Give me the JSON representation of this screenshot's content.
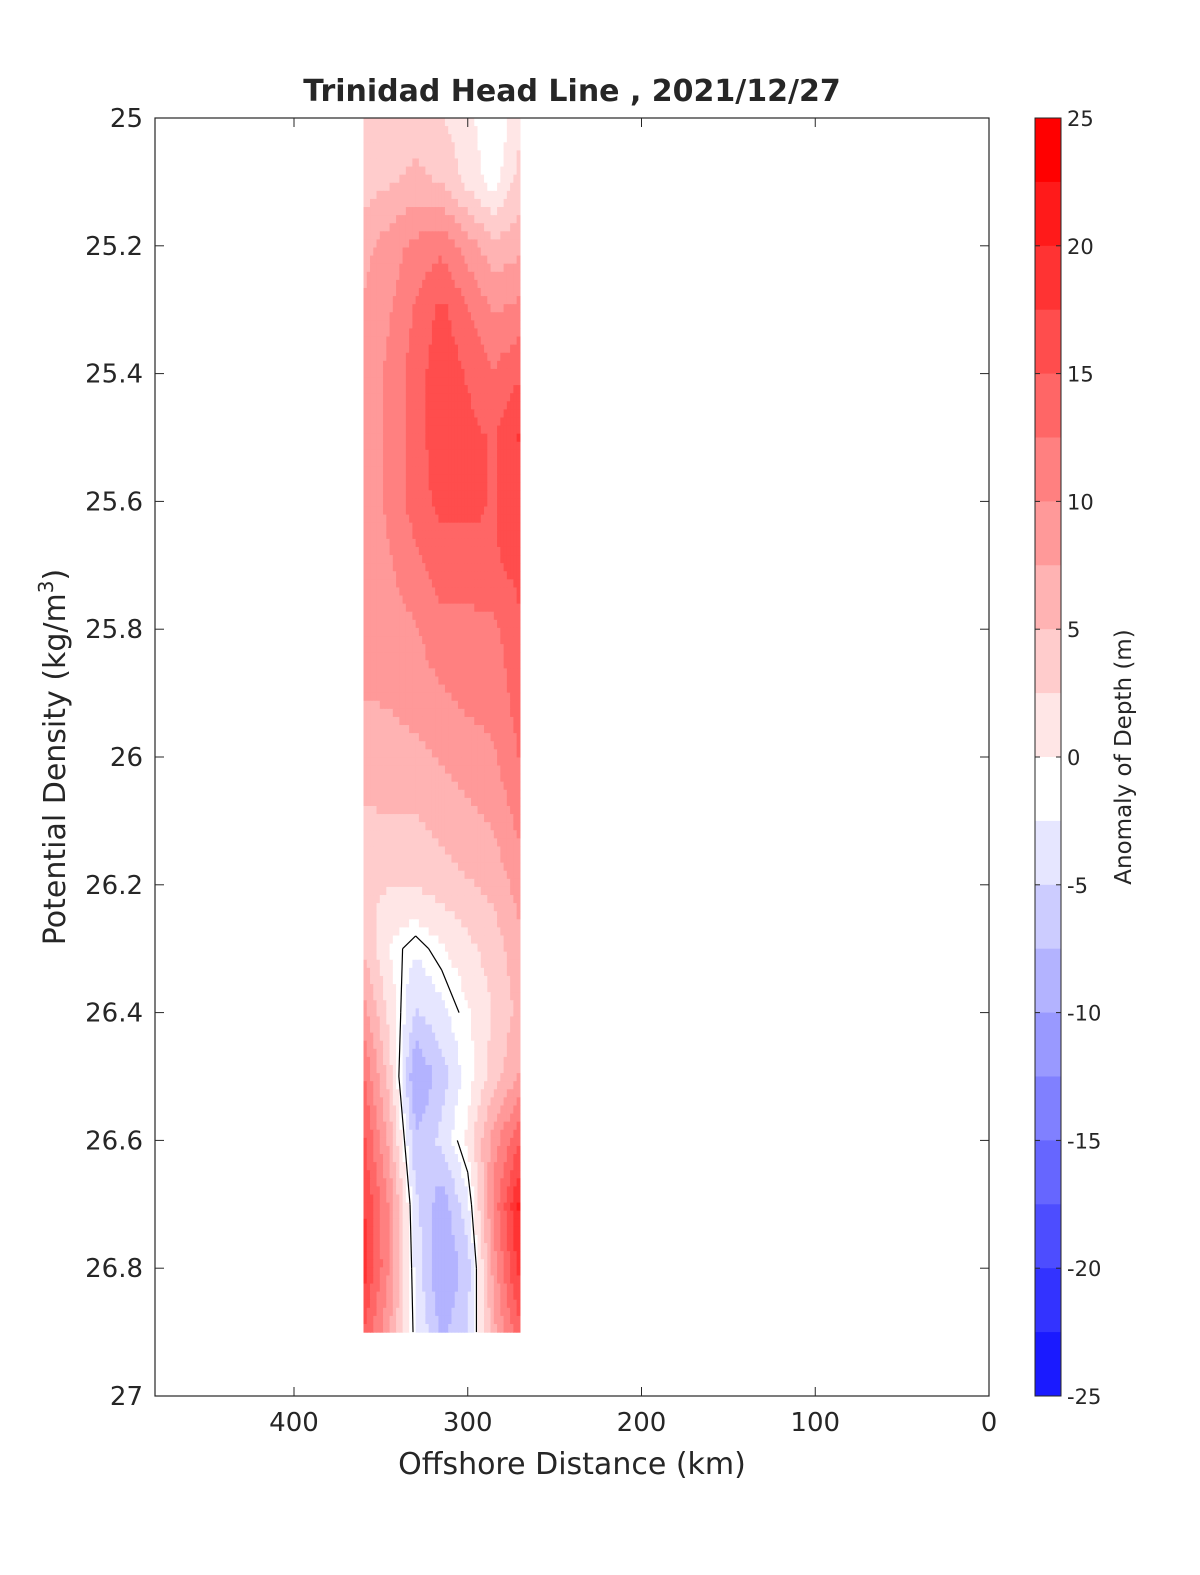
{
  "chart_data": {
    "type": "contour",
    "title": "Trinidad Head Line , 2021/12/27",
    "xlabel": "Offshore Distance (km)",
    "ylabel_main": "Potential Density (kg/m",
    "ylabel_sup": "3",
    "ylabel_close": ")",
    "xlim": [
      480,
      0
    ],
    "ylim": [
      25,
      27
    ],
    "y_reversed": true,
    "x_ticks": [
      400,
      300,
      200,
      100,
      0
    ],
    "y_ticks": [
      25,
      25.2,
      25.4,
      25.6,
      25.8,
      26,
      26.2,
      26.4,
      26.6,
      26.8,
      27
    ],
    "x": [
      360,
      345,
      330,
      315,
      300,
      285,
      270
    ],
    "y": [
      25.0,
      25.1,
      25.2,
      25.3,
      25.4,
      25.5,
      25.6,
      25.7,
      25.8,
      25.9,
      26.0,
      26.1,
      26.2,
      26.3,
      26.4,
      26.5,
      26.6,
      26.7,
      26.8,
      26.9
    ],
    "z": [
      [
        4,
        4,
        5,
        4,
        2,
        -1,
        3
      ],
      [
        5,
        6,
        7,
        6,
        3,
        0,
        5
      ],
      [
        8,
        10,
        12,
        13,
        10,
        7,
        8
      ],
      [
        9,
        11,
        14,
        17,
        14,
        11,
        12
      ],
      [
        9,
        12,
        15,
        18,
        16,
        14,
        16
      ],
      [
        9,
        12,
        15,
        18,
        17,
        16,
        19
      ],
      [
        9,
        12,
        15,
        17,
        17,
        16,
        18
      ],
      [
        9,
        11,
        13,
        15,
        15,
        16,
        17
      ],
      [
        9,
        10,
        11,
        13,
        13,
        13,
        16
      ],
      [
        9,
        9,
        10,
        11,
        12,
        12,
        15
      ],
      [
        7,
        8,
        8,
        9,
        10,
        11,
        14
      ],
      [
        6,
        6,
        6,
        7,
        8,
        9,
        12
      ],
      [
        4,
        4,
        4,
        5,
        6,
        7,
        10
      ],
      [
        6,
        1,
        -1,
        1,
        3,
        5,
        8
      ],
      [
        10,
        3,
        -4,
        -2,
        1,
        4,
        7
      ],
      [
        14,
        5,
        -9,
        -5,
        0,
        5,
        9
      ],
      [
        17,
        8,
        -6,
        -3,
        2,
        10,
        16
      ],
      [
        19,
        11,
        -3,
        -8,
        -2,
        12,
        22
      ],
      [
        20,
        11,
        -2,
        -9,
        -5,
        10,
        20
      ],
      [
        16,
        9,
        -1,
        -7,
        -4,
        8,
        16
      ]
    ],
    "contour_levels_step": 2.5,
    "black_contour_level": 0,
    "colorbar": {
      "label": "Anomaly of Depth (m)",
      "min": -25,
      "max": 25,
      "ticks": [
        25,
        20,
        15,
        10,
        5,
        0,
        -5,
        -10,
        -15,
        -20,
        -25
      ]
    },
    "colors": {
      "positive": "#ff0000",
      "negative": "#0000ff",
      "neutral": "#ffffff",
      "axis": "#262626"
    }
  }
}
